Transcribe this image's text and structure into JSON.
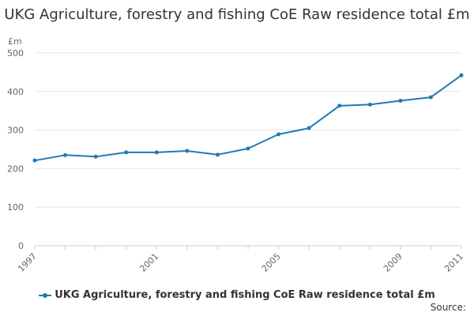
{
  "chart_data": {
    "type": "line",
    "title": "UKG Agriculture, forestry and fishing CoE Raw residence total £m",
    "ylabel": "£m",
    "xlabel": "",
    "ylim": [
      0,
      500
    ],
    "yticks": [
      0,
      100,
      200,
      300,
      400,
      500
    ],
    "xlim": [
      1997,
      2011
    ],
    "xticks": [
      1997,
      2001,
      2005,
      2009,
      2011
    ],
    "x": [
      1997,
      1998,
      1999,
      2000,
      2001,
      2002,
      2003,
      2004,
      2005,
      2006,
      2007,
      2008,
      2009,
      2010,
      2011
    ],
    "series": [
      {
        "name": "UKG Agriculture, forestry and fishing CoE Raw residence total £m",
        "values": [
          221,
          235,
          231,
          242,
          242,
          246,
          236,
          252,
          289,
          305,
          363,
          366,
          376,
          385,
          442
        ],
        "color": "#1f7bb4"
      }
    ],
    "grid": true,
    "legend": "bottom-center"
  },
  "footer": {
    "source_label": "Source:"
  }
}
